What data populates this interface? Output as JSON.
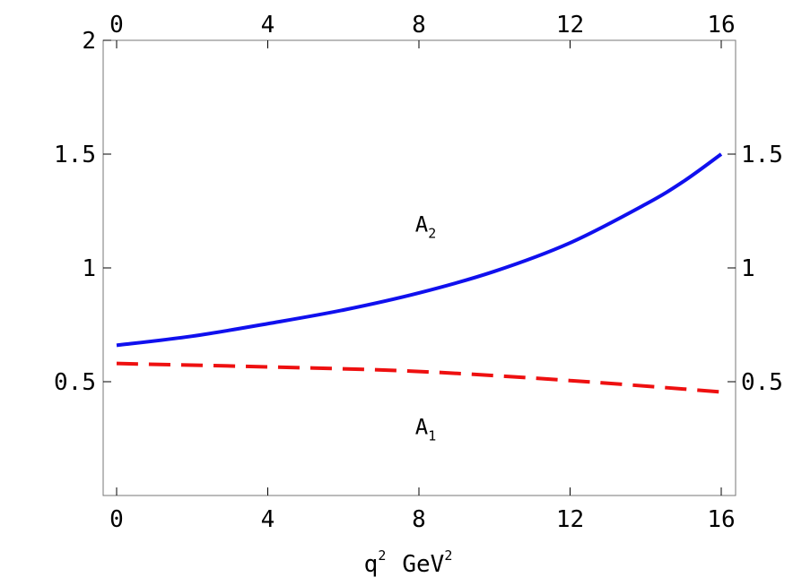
{
  "chart_data": {
    "type": "line",
    "xlabel": {
      "base1": "q",
      "sup1": "2",
      "base2": "GeV",
      "sup2": "2"
    },
    "ylabel": "",
    "xlim": [
      0,
      16
    ],
    "ylim": [
      0,
      2
    ],
    "x_ticks": [
      {
        "value": 0,
        "label": "0"
      },
      {
        "value": 4,
        "label": "4"
      },
      {
        "value": 8,
        "label": "8"
      },
      {
        "value": 12,
        "label": "12"
      },
      {
        "value": 16,
        "label": "16"
      }
    ],
    "y_ticks_left": [
      {
        "value": 0.5,
        "label": "0.5"
      },
      {
        "value": 1,
        "label": "1"
      },
      {
        "value": 1.5,
        "label": "1.5"
      },
      {
        "value": 2,
        "label": "2"
      }
    ],
    "y_ticks_right": [
      {
        "value": 0.5,
        "label": "0.5"
      },
      {
        "value": 1,
        "label": "1"
      },
      {
        "value": 1.5,
        "label": "1.5"
      }
    ],
    "grid": false,
    "series": [
      {
        "name": "A2",
        "label_base": "A",
        "label_sub": "2",
        "label_pos": [
          7.9,
          1.16
        ],
        "color": "#1010ee",
        "style": "solid",
        "x": [
          0,
          2,
          4,
          6,
          8,
          10,
          12,
          14,
          15,
          16
        ],
        "y": [
          0.66,
          0.7,
          0.755,
          0.815,
          0.89,
          0.985,
          1.11,
          1.28,
          1.38,
          1.5
        ]
      },
      {
        "name": "A1",
        "label_base": "A",
        "label_sub": "1",
        "label_pos": [
          7.9,
          0.27
        ],
        "color": "#ee1010",
        "style": "dashed",
        "x": [
          0,
          4,
          8,
          12,
          16
        ],
        "y": [
          0.58,
          0.565,
          0.545,
          0.505,
          0.455
        ]
      }
    ]
  }
}
